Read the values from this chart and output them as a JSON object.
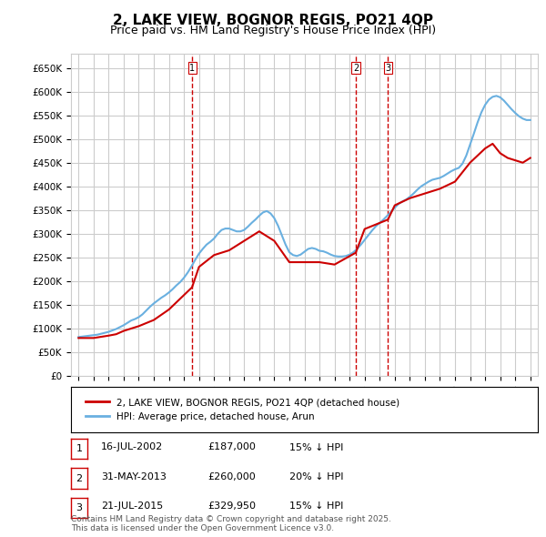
{
  "title": "2, LAKE VIEW, BOGNOR REGIS, PO21 4QP",
  "subtitle": "Price paid vs. HM Land Registry's House Price Index (HPI)",
  "xlabel": "",
  "ylabel": "",
  "ylim": [
    0,
    680000
  ],
  "yticks": [
    0,
    50000,
    100000,
    150000,
    200000,
    250000,
    300000,
    350000,
    400000,
    450000,
    500000,
    550000,
    600000,
    650000
  ],
  "ytick_labels": [
    "£0",
    "£50K",
    "£100K",
    "£150K",
    "£200K",
    "£250K",
    "£300K",
    "£350K",
    "£400K",
    "£450K",
    "£500K",
    "£550K",
    "£600K",
    "£650K"
  ],
  "hpi_color": "#6ab0e0",
  "price_color": "#cc0000",
  "vline_color": "#cc0000",
  "grid_color": "#cccccc",
  "background_color": "#ffffff",
  "legend_label_price": "2, LAKE VIEW, BOGNOR REGIS, PO21 4QP (detached house)",
  "legend_label_hpi": "HPI: Average price, detached house, Arun",
  "transactions": [
    {
      "num": 1,
      "date": "16-JUL-2002",
      "price": 187000,
      "year": 2002.54,
      "note": "15% ↓ HPI"
    },
    {
      "num": 2,
      "date": "31-MAY-2013",
      "price": 260000,
      "year": 2013.41,
      "note": "20% ↓ HPI"
    },
    {
      "num": 3,
      "date": "21-JUL-2015",
      "price": 329950,
      "year": 2015.55,
      "note": "15% ↓ HPI"
    }
  ],
  "footer": "Contains HM Land Registry data © Crown copyright and database right 2025.\nThis data is licensed under the Open Government Licence v3.0.",
  "hpi_data_x": [
    1995.0,
    1995.25,
    1995.5,
    1995.75,
    1996.0,
    1996.25,
    1996.5,
    1996.75,
    1997.0,
    1997.25,
    1997.5,
    1997.75,
    1998.0,
    1998.25,
    1998.5,
    1998.75,
    1999.0,
    1999.25,
    1999.5,
    1999.75,
    2000.0,
    2000.25,
    2000.5,
    2000.75,
    2001.0,
    2001.25,
    2001.5,
    2001.75,
    2002.0,
    2002.25,
    2002.5,
    2002.75,
    2003.0,
    2003.25,
    2003.5,
    2003.75,
    2004.0,
    2004.25,
    2004.5,
    2004.75,
    2005.0,
    2005.25,
    2005.5,
    2005.75,
    2006.0,
    2006.25,
    2006.5,
    2006.75,
    2007.0,
    2007.25,
    2007.5,
    2007.75,
    2008.0,
    2008.25,
    2008.5,
    2008.75,
    2009.0,
    2009.25,
    2009.5,
    2009.75,
    2010.0,
    2010.25,
    2010.5,
    2010.75,
    2011.0,
    2011.25,
    2011.5,
    2011.75,
    2012.0,
    2012.25,
    2012.5,
    2012.75,
    2013.0,
    2013.25,
    2013.5,
    2013.75,
    2014.0,
    2014.25,
    2014.5,
    2014.75,
    2015.0,
    2015.25,
    2015.5,
    2015.75,
    2016.0,
    2016.25,
    2016.5,
    2016.75,
    2017.0,
    2017.25,
    2017.5,
    2017.75,
    2018.0,
    2018.25,
    2018.5,
    2018.75,
    2019.0,
    2019.25,
    2019.5,
    2019.75,
    2020.0,
    2020.25,
    2020.5,
    2020.75,
    2021.0,
    2021.25,
    2021.5,
    2021.75,
    2022.0,
    2022.25,
    2022.5,
    2022.75,
    2023.0,
    2023.25,
    2023.5,
    2023.75,
    2024.0,
    2024.25,
    2024.5,
    2024.75,
    2025.0
  ],
  "hpi_data_y": [
    82000,
    83000,
    84000,
    85000,
    86000,
    87000,
    89000,
    91000,
    93000,
    96000,
    99000,
    103000,
    107000,
    112000,
    117000,
    120000,
    124000,
    130000,
    138000,
    146000,
    153000,
    159000,
    165000,
    170000,
    176000,
    183000,
    191000,
    198000,
    207000,
    218000,
    231000,
    245000,
    258000,
    268000,
    277000,
    283000,
    290000,
    300000,
    308000,
    311000,
    311000,
    308000,
    305000,
    305000,
    308000,
    315000,
    323000,
    330000,
    338000,
    345000,
    348000,
    343000,
    333000,
    317000,
    297000,
    277000,
    261000,
    255000,
    253000,
    256000,
    262000,
    268000,
    270000,
    268000,
    264000,
    263000,
    260000,
    256000,
    253000,
    252000,
    252000,
    253000,
    256000,
    261000,
    268000,
    277000,
    287000,
    297000,
    307000,
    316000,
    323000,
    330000,
    338000,
    346000,
    355000,
    363000,
    368000,
    372000,
    378000,
    385000,
    393000,
    400000,
    405000,
    410000,
    414000,
    416000,
    418000,
    422000,
    427000,
    432000,
    436000,
    439000,
    448000,
    465000,
    488000,
    511000,
    535000,
    556000,
    572000,
    583000,
    589000,
    591000,
    588000,
    581000,
    572000,
    563000,
    555000,
    548000,
    543000,
    540000,
    540000
  ],
  "price_data_x": [
    1995.0,
    1996.0,
    1997.0,
    1997.5,
    1998.0,
    1999.0,
    2000.0,
    2001.0,
    2002.54,
    2003.0,
    2004.0,
    2005.0,
    2006.0,
    2007.0,
    2008.0,
    2009.0,
    2010.0,
    2011.0,
    2012.0,
    2013.41,
    2014.0,
    2015.55,
    2016.0,
    2017.0,
    2018.0,
    2019.0,
    2020.0,
    2021.0,
    2022.0,
    2022.5,
    2023.0,
    2023.5,
    2024.0,
    2024.5,
    2025.0
  ],
  "price_data_y": [
    80000,
    80000,
    85000,
    88000,
    95000,
    105000,
    118000,
    140000,
    187000,
    230000,
    255000,
    265000,
    285000,
    305000,
    285000,
    240000,
    240000,
    240000,
    235000,
    260000,
    310000,
    329950,
    360000,
    375000,
    385000,
    395000,
    410000,
    450000,
    480000,
    490000,
    470000,
    460000,
    455000,
    450000,
    460000
  ]
}
